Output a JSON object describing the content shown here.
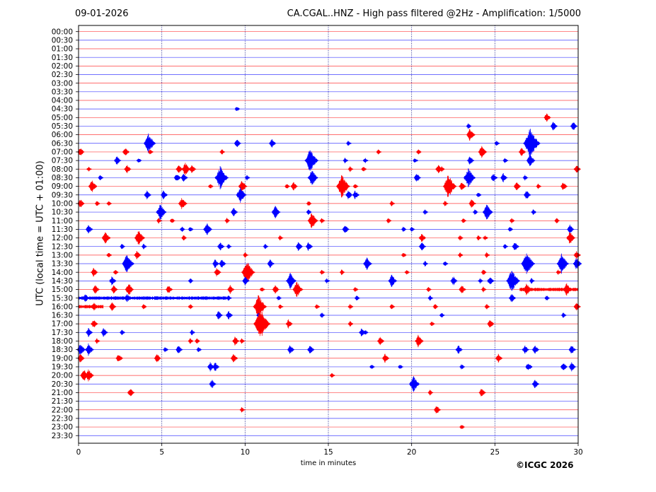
{
  "header": {
    "date": "09-01-2026",
    "title": "CA.CGAL..HNZ - High pass filtered @2Hz - Amplification: 1/5000"
  },
  "footer": {
    "copyright": "©ICGC 2026"
  },
  "chart_data": {
    "type": "line",
    "title": "CA.CGAL..HNZ - High pass filtered @2Hz - Amplification: 1/5000",
    "xlabel": "time in minutes",
    "ylabel": "UTC (local time = UTC + 01:00)",
    "xlim": [
      0,
      30
    ],
    "xticks": [
      0,
      5,
      10,
      15,
      20,
      25,
      30
    ],
    "x_gridlines": [
      5,
      10,
      15,
      20,
      25
    ],
    "row_labels": [
      "00:00",
      "00:30",
      "01:00",
      "01:30",
      "02:00",
      "02:30",
      "03:00",
      "03:30",
      "04:00",
      "04:30",
      "05:00",
      "05:30",
      "06:00",
      "06:30",
      "07:00",
      "07:30",
      "08:00",
      "08:30",
      "09:00",
      "09:30",
      "10:00",
      "10:30",
      "11:00",
      "11:30",
      "12:00",
      "12:30",
      "13:00",
      "13:30",
      "14:00",
      "14:30",
      "15:00",
      "15:30",
      "16:00",
      "16:30",
      "17:00",
      "17:30",
      "18:00",
      "18:30",
      "19:00",
      "19:30",
      "20:00",
      "20:30",
      "21:00",
      "21:30",
      "22:00",
      "22:30",
      "23:00",
      "23:30"
    ],
    "trace_colors": [
      "#ff0000",
      "#0000ff"
    ],
    "colors": {
      "even_rows": "#ff0000",
      "odd_rows": "#0000ff",
      "grid": "#000080"
    },
    "events": [
      [
        9,
        9.5,
        1
      ],
      [
        10,
        28.1,
        2
      ],
      [
        11,
        28.5,
        2
      ],
      [
        11,
        29.7,
        2
      ],
      [
        11,
        23.4,
        1
      ],
      [
        12,
        23.5,
        3
      ],
      [
        13,
        4.2,
        5
      ],
      [
        13,
        9.5,
        2
      ],
      [
        13,
        11.6,
        2
      ],
      [
        13,
        16.2,
        1
      ],
      [
        13,
        25.1,
        1
      ],
      [
        13,
        27.1,
        8
      ],
      [
        14,
        0.1,
        2
      ],
      [
        14,
        2.8,
        2
      ],
      [
        14,
        4.3,
        1
      ],
      [
        14,
        8.6,
        1
      ],
      [
        14,
        18.0,
        1
      ],
      [
        14,
        20.4,
        1
      ],
      [
        14,
        24.2,
        3
      ],
      [
        14,
        26.6,
        2
      ],
      [
        15,
        2.3,
        2
      ],
      [
        15,
        3.6,
        1
      ],
      [
        15,
        13.9,
        6
      ],
      [
        15,
        16.0,
        1
      ],
      [
        15,
        17.2,
        1
      ],
      [
        15,
        20.2,
        1
      ],
      [
        15,
        23.5,
        2
      ],
      [
        15,
        25.6,
        1
      ],
      [
        15,
        27.1,
        3
      ],
      [
        16,
        0.6,
        1
      ],
      [
        16,
        2.9,
        2
      ],
      [
        16,
        6.0,
        2
      ],
      [
        16,
        6.4,
        3
      ],
      [
        16,
        6.8,
        2
      ],
      [
        16,
        16.3,
        1
      ],
      [
        16,
        17.1,
        1
      ],
      [
        16,
        21.6,
        2
      ],
      [
        16,
        21.8,
        1
      ],
      [
        16,
        29.9,
        2
      ],
      [
        17,
        1.3,
        1
      ],
      [
        17,
        5.9,
        2
      ],
      [
        17,
        6.3,
        2
      ],
      [
        17,
        8.5,
        6
      ],
      [
        17,
        10.1,
        1
      ],
      [
        17,
        14.0,
        4
      ],
      [
        17,
        20.3,
        2
      ],
      [
        17,
        23.4,
        5
      ],
      [
        17,
        24.9,
        2
      ],
      [
        17,
        25.5,
        2
      ],
      [
        17,
        26.8,
        1
      ],
      [
        18,
        0.8,
        3
      ],
      [
        18,
        7.9,
        1
      ],
      [
        18,
        9.8,
        3
      ],
      [
        18,
        12.5,
        1
      ],
      [
        18,
        12.9,
        2
      ],
      [
        18,
        15.8,
        6
      ],
      [
        18,
        16.6,
        1
      ],
      [
        18,
        22.2,
        6
      ],
      [
        18,
        23.0,
        2
      ],
      [
        18,
        26.3,
        2
      ],
      [
        18,
        27.6,
        1
      ],
      [
        18,
        29.1,
        2
      ],
      [
        19,
        4.1,
        2
      ],
      [
        19,
        5.1,
        2
      ],
      [
        19,
        9.7,
        4
      ],
      [
        19,
        16.2,
        2
      ],
      [
        19,
        16.6,
        2
      ],
      [
        19,
        24.0,
        1
      ],
      [
        19,
        26.9,
        2
      ],
      [
        20,
        0.1,
        2
      ],
      [
        20,
        1.1,
        1
      ],
      [
        20,
        1.8,
        1
      ],
      [
        20,
        6.2,
        3
      ],
      [
        20,
        13.8,
        1
      ],
      [
        20,
        18.8,
        1
      ],
      [
        20,
        22.0,
        1
      ],
      [
        20,
        23.6,
        2
      ],
      [
        21,
        4.9,
        4
      ],
      [
        21,
        9.3,
        2
      ],
      [
        21,
        11.8,
        3
      ],
      [
        21,
        13.8,
        1
      ],
      [
        21,
        20.8,
        1
      ],
      [
        21,
        23.8,
        1
      ],
      [
        21,
        24.5,
        4
      ],
      [
        21,
        27.3,
        1
      ],
      [
        22,
        4.8,
        1
      ],
      [
        22,
        5.6,
        1
      ],
      [
        22,
        8.9,
        1
      ],
      [
        22,
        14.0,
        4
      ],
      [
        22,
        14.6,
        1
      ],
      [
        22,
        18.6,
        1
      ],
      [
        22,
        23.1,
        1
      ],
      [
        22,
        26.0,
        1
      ],
      [
        22,
        28.7,
        1
      ],
      [
        23,
        0.6,
        2
      ],
      [
        23,
        6.2,
        1
      ],
      [
        23,
        6.7,
        1
      ],
      [
        23,
        7.7,
        3
      ],
      [
        23,
        16.0,
        2
      ],
      [
        23,
        19.5,
        1
      ],
      [
        23,
        20.0,
        1
      ],
      [
        23,
        25.9,
        1
      ],
      [
        23,
        29.5,
        2
      ],
      [
        24,
        1.6,
        3
      ],
      [
        24,
        3.6,
        4
      ],
      [
        24,
        6.3,
        1
      ],
      [
        24,
        12.1,
        1
      ],
      [
        24,
        20.6,
        2
      ],
      [
        24,
        22.9,
        1
      ],
      [
        24,
        24.0,
        1
      ],
      [
        24,
        24.4,
        1
      ],
      [
        24,
        29.5,
        3
      ],
      [
        25,
        2.6,
        1
      ],
      [
        25,
        3.9,
        1
      ],
      [
        25,
        8.5,
        2
      ],
      [
        25,
        9.0,
        1
      ],
      [
        25,
        11.2,
        1
      ],
      [
        25,
        13.2,
        2
      ],
      [
        25,
        13.8,
        2
      ],
      [
        25,
        20.6,
        2
      ],
      [
        25,
        25.6,
        1
      ],
      [
        25,
        26.2,
        2
      ],
      [
        26,
        1.8,
        1
      ],
      [
        26,
        3.5,
        2
      ],
      [
        26,
        10.0,
        1
      ],
      [
        26,
        19.5,
        1
      ],
      [
        26,
        22.9,
        1
      ],
      [
        26,
        24.5,
        1
      ],
      [
        26,
        29.9,
        2
      ],
      [
        27,
        2.9,
        5
      ],
      [
        27,
        8.2,
        2
      ],
      [
        27,
        8.6,
        2
      ],
      [
        27,
        11.5,
        2
      ],
      [
        27,
        17.3,
        3
      ],
      [
        27,
        20.8,
        1
      ],
      [
        27,
        22.0,
        1
      ],
      [
        27,
        26.9,
        6
      ],
      [
        27,
        29.0,
        5
      ],
      [
        27,
        29.9,
        3
      ],
      [
        28,
        0.9,
        2
      ],
      [
        28,
        2.2,
        1
      ],
      [
        28,
        8.3,
        2
      ],
      [
        28,
        10.1,
        6
      ],
      [
        28,
        14.6,
        1
      ],
      [
        28,
        15.8,
        1
      ],
      [
        28,
        19.7,
        1
      ],
      [
        28,
        24.3,
        1
      ],
      [
        28,
        28.8,
        1
      ],
      [
        29,
        2.0,
        2
      ],
      [
        29,
        6.7,
        1
      ],
      [
        29,
        10.0,
        2
      ],
      [
        29,
        12.7,
        4
      ],
      [
        29,
        14.9,
        1
      ],
      [
        29,
        18.8,
        3
      ],
      [
        29,
        22.5,
        2
      ],
      [
        29,
        24.1,
        1
      ],
      [
        29,
        24.7,
        2
      ],
      [
        29,
        26.0,
        6
      ],
      [
        29,
        27.2,
        1
      ],
      [
        30,
        1.0,
        2
      ],
      [
        30,
        2.1,
        2
      ],
      [
        30,
        3.0,
        3
      ],
      [
        30,
        5.4,
        2
      ],
      [
        30,
        9.1,
        2
      ],
      [
        30,
        11.0,
        1
      ],
      [
        30,
        11.8,
        2
      ],
      [
        30,
        13.1,
        4
      ],
      [
        30,
        16.6,
        1
      ],
      [
        30,
        21.0,
        1
      ],
      [
        30,
        23.0,
        2
      ],
      [
        30,
        24.3,
        1
      ],
      [
        30,
        26.9,
        3
      ],
      [
        30,
        29.3,
        3
      ],
      [
        31,
        0.4,
        2
      ],
      [
        31,
        2.9,
        2
      ],
      [
        31,
        9.0,
        1
      ],
      [
        31,
        12.0,
        1
      ],
      [
        31,
        16.7,
        1
      ],
      [
        31,
        21.1,
        1
      ],
      [
        31,
        26.0,
        2
      ],
      [
        31,
        28.1,
        1
      ],
      [
        32,
        0.9,
        2
      ],
      [
        32,
        2.0,
        2
      ],
      [
        32,
        3.9,
        1
      ],
      [
        32,
        6.7,
        1
      ],
      [
        32,
        10.8,
        6
      ],
      [
        32,
        12.1,
        1
      ],
      [
        32,
        14.3,
        1
      ],
      [
        32,
        16.3,
        1
      ],
      [
        32,
        18.8,
        1
      ],
      [
        32,
        21.4,
        1
      ],
      [
        32,
        24.5,
        1
      ],
      [
        32,
        29.9,
        2
      ],
      [
        33,
        8.4,
        2
      ],
      [
        33,
        9.0,
        2
      ],
      [
        33,
        10.8,
        1
      ],
      [
        33,
        14.6,
        1
      ],
      [
        33,
        21.8,
        1
      ],
      [
        33,
        29.1,
        1
      ],
      [
        34,
        0.9,
        2
      ],
      [
        34,
        10.9,
        8
      ],
      [
        34,
        12.6,
        2
      ],
      [
        34,
        16.3,
        1
      ],
      [
        34,
        21.2,
        1
      ],
      [
        34,
        24.7,
        2
      ],
      [
        35,
        0.6,
        2
      ],
      [
        35,
        1.5,
        2
      ],
      [
        35,
        2.6,
        1
      ],
      [
        35,
        6.8,
        1
      ],
      [
        35,
        17.0,
        2
      ],
      [
        35,
        17.2,
        1
      ],
      [
        36,
        1.1,
        1
      ],
      [
        36,
        6.7,
        1
      ],
      [
        36,
        7.1,
        1
      ],
      [
        36,
        9.4,
        2
      ],
      [
        36,
        9.8,
        1
      ],
      [
        36,
        18.1,
        2
      ],
      [
        36,
        20.4,
        3
      ],
      [
        37,
        0.1,
        3
      ],
      [
        37,
        0.6,
        3
      ],
      [
        37,
        5.2,
        1
      ],
      [
        37,
        6.0,
        2
      ],
      [
        37,
        7.2,
        1
      ],
      [
        37,
        12.7,
        2
      ],
      [
        37,
        13.9,
        2
      ],
      [
        37,
        22.8,
        2
      ],
      [
        37,
        26.8,
        2
      ],
      [
        37,
        27.4,
        2
      ],
      [
        37,
        29.6,
        2
      ],
      [
        38,
        0.1,
        2
      ],
      [
        38,
        2.4,
        2
      ],
      [
        38,
        4.7,
        2
      ],
      [
        38,
        9.3,
        2
      ],
      [
        38,
        18.4,
        2
      ],
      [
        38,
        25.2,
        2
      ],
      [
        39,
        7.9,
        2
      ],
      [
        39,
        8.2,
        2
      ],
      [
        39,
        17.6,
        1
      ],
      [
        39,
        19.3,
        1
      ],
      [
        39,
        23.0,
        1
      ],
      [
        39,
        27.0,
        2
      ],
      [
        39,
        29.1,
        2
      ],
      [
        39,
        29.6,
        2
      ],
      [
        40,
        0.3,
        3
      ],
      [
        40,
        0.6,
        3
      ],
      [
        40,
        15.2,
        1
      ],
      [
        41,
        8.0,
        2
      ],
      [
        41,
        20.1,
        4
      ],
      [
        41,
        27.4,
        2
      ],
      [
        42,
        3.1,
        2
      ],
      [
        42,
        21.1,
        1
      ],
      [
        42,
        24.2,
        2
      ],
      [
        44,
        9.8,
        1
      ],
      [
        44,
        21.5,
        2
      ],
      [
        46,
        23.0,
        1
      ]
    ],
    "noise_bands": [
      [
        30,
        26.5,
        28.5
      ],
      [
        30,
        28.5,
        30.0
      ],
      [
        31,
        0.0,
        4.0
      ],
      [
        31,
        4.0,
        9.0
      ],
      [
        32,
        0.0,
        1.5
      ]
    ]
  }
}
